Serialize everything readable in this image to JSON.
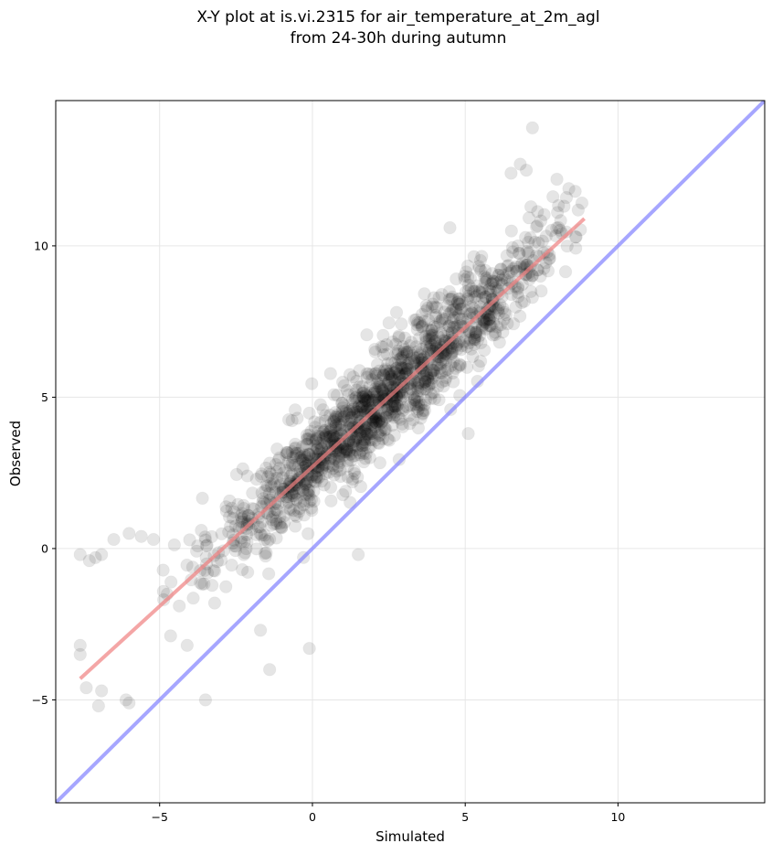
{
  "chart_data": {
    "type": "scatter",
    "title": "X-Y plot at is.vi.2315 for air_temperature_at_2m_agl",
    "subtitle": "from 24-30h during autumn",
    "xlabel": "Simulated",
    "ylabel": "Observed",
    "xlim": [
      -8.4,
      14.8
    ],
    "ylim": [
      -8.4,
      14.8
    ],
    "xticks": [
      -5,
      0,
      5,
      10
    ],
    "xtick_labels": [
      "−5",
      "0",
      "5",
      "10"
    ],
    "yticks": [
      -5,
      0,
      5,
      10
    ],
    "ytick_labels": [
      "−5",
      "0",
      "5",
      "10"
    ],
    "grid": true,
    "legend": "none",
    "colors": {
      "points": "#000000",
      "fit_line": "#f08080",
      "one_to_one_line": "#8080ff",
      "grid": "#e6e6e6"
    },
    "lines": [
      {
        "role": "fit",
        "x": [
          -7.6,
          8.9
        ],
        "y": [
          -4.3,
          10.9
        ]
      },
      {
        "role": "one-to-one",
        "x": [
          -8.4,
          14.8
        ],
        "y": [
          -8.4,
          14.8
        ]
      }
    ],
    "outliers": [
      {
        "x": -7.6,
        "y": -0.2
      },
      {
        "x": -7.3,
        "y": -0.4
      },
      {
        "x": -7.1,
        "y": -0.3
      },
      {
        "x": -6.9,
        "y": -0.2
      },
      {
        "x": -6.5,
        "y": 0.3
      },
      {
        "x": -6.0,
        "y": 0.5
      },
      {
        "x": -5.6,
        "y": 0.4
      },
      {
        "x": -5.2,
        "y": 0.3
      },
      {
        "x": -7.6,
        "y": -3.2
      },
      {
        "x": -7.6,
        "y": -3.5
      },
      {
        "x": -7.4,
        "y": -4.6
      },
      {
        "x": -7.0,
        "y": -5.2
      },
      {
        "x": -6.9,
        "y": -4.7
      },
      {
        "x": -6.1,
        "y": -5.0
      },
      {
        "x": -6.0,
        "y": -5.1
      },
      {
        "x": -3.5,
        "y": -5.0
      },
      {
        "x": -4.1,
        "y": -3.2
      },
      {
        "x": -1.4,
        "y": -4.0
      },
      {
        "x": -0.1,
        "y": -3.3
      },
      {
        "x": 7.2,
        "y": 13.9
      },
      {
        "x": 6.8,
        "y": 12.7
      },
      {
        "x": 7.0,
        "y": 12.5
      },
      {
        "x": 6.5,
        "y": 12.4
      },
      {
        "x": 8.6,
        "y": 11.8
      },
      {
        "x": 8.0,
        "y": 12.2
      },
      {
        "x": 5.1,
        "y": 3.8
      },
      {
        "x": 1.5,
        "y": -0.2
      },
      {
        "x": -1.7,
        "y": -2.7
      },
      {
        "x": -3.2,
        "y": -1.8
      },
      {
        "x": 4.5,
        "y": 10.6
      }
    ],
    "cloud": {
      "n_points": 1450,
      "seed": 7,
      "x_mean": 2.4,
      "x_std": 2.8,
      "x_range": [
        -5.6,
        8.9
      ],
      "intercept": 2.85,
      "slope": 0.92,
      "residual_std": 0.8
    }
  }
}
